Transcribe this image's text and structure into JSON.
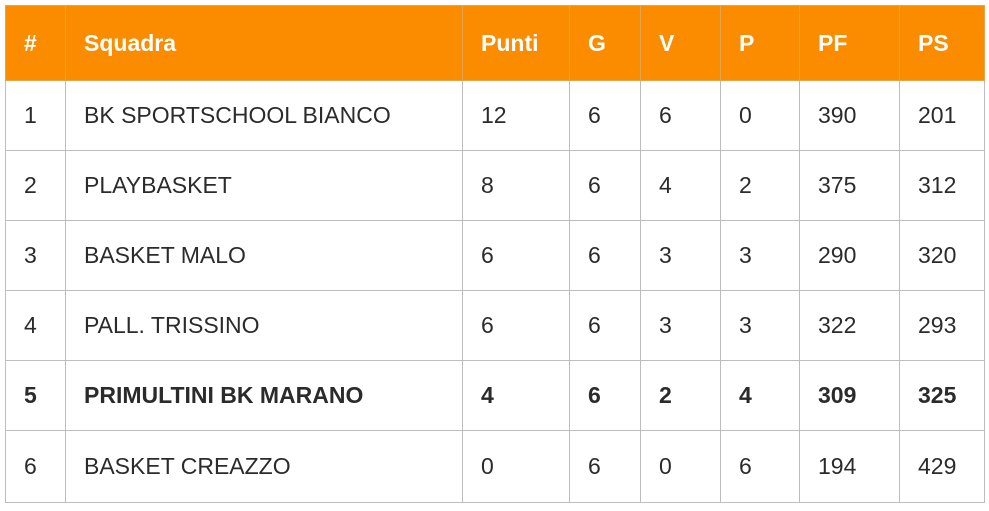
{
  "table": {
    "headers": [
      "#",
      "Squadra",
      "Punti",
      "G",
      "V",
      "P",
      "PF",
      "PS"
    ],
    "header_bg": "#fb8c00",
    "highlight_row": 4,
    "rows": [
      [
        "1",
        "BK SPORTSCHOOL BIANCO",
        "12",
        "6",
        "6",
        "0",
        "390",
        "201"
      ],
      [
        "2",
        "PLAYBASKET",
        "8",
        "6",
        "4",
        "2",
        "375",
        "312"
      ],
      [
        "3",
        "BASKET MALO",
        "6",
        "6",
        "3",
        "3",
        "290",
        "320"
      ],
      [
        "4",
        "PALL. TRISSINO",
        "6",
        "6",
        "3",
        "3",
        "322",
        "293"
      ],
      [
        "5",
        "PRIMULTINI BK MARANO",
        "4",
        "6",
        "2",
        "4",
        "309",
        "325"
      ],
      [
        "6",
        "BASKET CREAZZO",
        "0",
        "6",
        "0",
        "6",
        "194",
        "429"
      ]
    ]
  }
}
